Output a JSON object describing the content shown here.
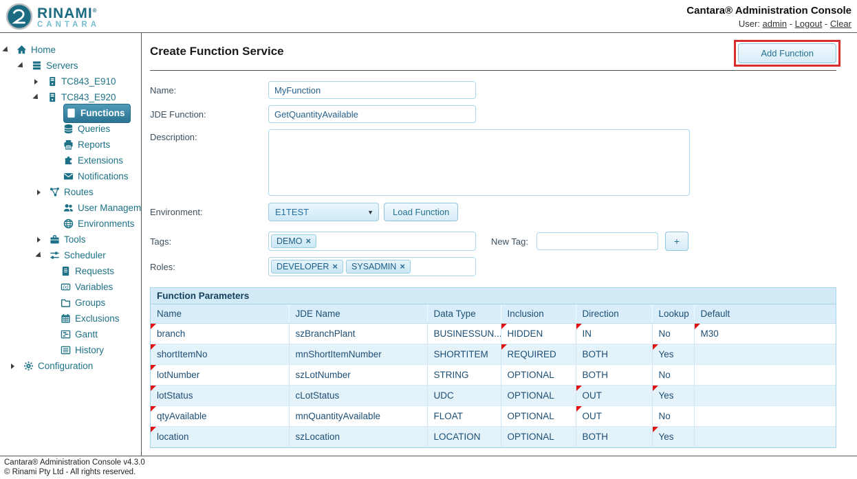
{
  "header": {
    "logo_line1": "RINAMI",
    "logo_reg": "®",
    "logo_line2": "CANTARA",
    "title": "Cantara® Administration Console",
    "user_label": "User:",
    "user_name": "admin",
    "separator": "-",
    "logout_label": "Logout",
    "clear_label": "Clear"
  },
  "sidebar": {
    "items": [
      {
        "label": "Home",
        "icon": "home-icon",
        "expander": "open",
        "indent": 6,
        "selected": false
      },
      {
        "label": "Servers",
        "icon": "servers-icon",
        "expander": "open",
        "indent": 28,
        "selected": false
      },
      {
        "label": "TC843_E910",
        "icon": "server-icon",
        "expander": "closed",
        "indent": 50,
        "selected": false
      },
      {
        "label": "TC843_E920",
        "icon": "server-icon",
        "expander": "open",
        "indent": 50,
        "selected": false
      },
      {
        "label": "Functions",
        "icon": "functions-icon",
        "expander": "none",
        "indent": 74,
        "selected": true
      },
      {
        "label": "Queries",
        "icon": "queries-icon",
        "expander": "none",
        "indent": 74,
        "selected": false
      },
      {
        "label": "Reports",
        "icon": "reports-icon",
        "expander": "none",
        "indent": 74,
        "selected": false
      },
      {
        "label": "Extensions",
        "icon": "extensions-icon",
        "expander": "none",
        "indent": 74,
        "selected": false
      },
      {
        "label": "Notifications",
        "icon": "notifications-icon",
        "expander": "none",
        "indent": 74,
        "selected": false
      },
      {
        "label": "Routes",
        "icon": "routes-icon",
        "expander": "closed",
        "indent": 54,
        "selected": false
      },
      {
        "label": "User Management",
        "icon": "user-management-icon",
        "expander": "none",
        "indent": 74,
        "selected": false
      },
      {
        "label": "Environments",
        "icon": "environments-icon",
        "expander": "none",
        "indent": 74,
        "selected": false
      },
      {
        "label": "Tools",
        "icon": "tools-icon",
        "expander": "closed",
        "indent": 54,
        "selected": false
      },
      {
        "label": "Scheduler",
        "icon": "scheduler-icon",
        "expander": "open",
        "indent": 54,
        "selected": false
      },
      {
        "label": "Requests",
        "icon": "requests-icon",
        "expander": "none",
        "indent": 70,
        "selected": false
      },
      {
        "label": "Variables",
        "icon": "variables-icon",
        "expander": "none",
        "indent": 70,
        "selected": false
      },
      {
        "label": "Groups",
        "icon": "groups-icon",
        "expander": "none",
        "indent": 70,
        "selected": false
      },
      {
        "label": "Exclusions",
        "icon": "exclusions-icon",
        "expander": "none",
        "indent": 70,
        "selected": false
      },
      {
        "label": "Gantt",
        "icon": "gantt-icon",
        "expander": "none",
        "indent": 70,
        "selected": false
      },
      {
        "label": "History",
        "icon": "history-icon",
        "expander": "none",
        "indent": 70,
        "selected": false
      },
      {
        "label": "Configuration",
        "icon": "configuration-icon",
        "expander": "closed",
        "indent": 16,
        "selected": false
      }
    ]
  },
  "main": {
    "page_title": "Create Function Service",
    "add_function_label": "Add Function",
    "name_label": "Name:",
    "name_value": "MyFunction",
    "jde_function_label": "JDE Function:",
    "jde_function_value": "GetQuantityAvailable",
    "description_label": "Description:",
    "description_value": "",
    "environment_label": "Environment:",
    "environment_value": "E1TEST",
    "load_function_label": "Load Function",
    "tags_label": "Tags:",
    "tags_chips": [
      "DEMO"
    ],
    "new_tag_label": "New Tag:",
    "new_tag_value": "",
    "add_tag_label": "+",
    "roles_label": "Roles:",
    "roles_chips": [
      "DEVELOPER",
      "SYSADMIN"
    ],
    "chip_close_glyph": "×"
  },
  "table": {
    "title": "Function Parameters",
    "columns": [
      "Name",
      "JDE Name",
      "Data Type",
      "Inclusion",
      "Direction",
      "Lookup",
      "Default"
    ],
    "rows": [
      {
        "cells": [
          "branch",
          "szBranchPlant",
          "BUSINESSUN...",
          "HIDDEN",
          "IN",
          "No",
          "M30"
        ],
        "flagged_cells": [
          0,
          3,
          4,
          6
        ]
      },
      {
        "cells": [
          "shortItemNo",
          "mnShortItemNumber",
          "SHORTITEM",
          "REQUIRED",
          "BOTH",
          "Yes",
          ""
        ],
        "flagged_cells": [
          0,
          3,
          5
        ]
      },
      {
        "cells": [
          "lotNumber",
          "szLotNumber",
          "STRING",
          "OPTIONAL",
          "BOTH",
          "No",
          ""
        ],
        "flagged_cells": [
          0
        ]
      },
      {
        "cells": [
          "lotStatus",
          "cLotStatus",
          "UDC",
          "OPTIONAL",
          "OUT",
          "Yes",
          ""
        ],
        "flagged_cells": [
          0,
          4,
          5
        ]
      },
      {
        "cells": [
          "qtyAvailable",
          "mnQuantityAvailable",
          "FLOAT",
          "OPTIONAL",
          "OUT",
          "No",
          ""
        ],
        "flagged_cells": [
          0,
          4
        ]
      },
      {
        "cells": [
          "location",
          "szLocation",
          "LOCATION",
          "OPTIONAL",
          "BOTH",
          "Yes",
          ""
        ],
        "flagged_cells": [
          0,
          5
        ]
      }
    ]
  },
  "footer": {
    "line1": "Cantara® Administration Console v4.3.0",
    "line2": "© Rinami Pty Ltd - All rights reserved."
  },
  "colors": {
    "accent_teal": "#1d7186",
    "selected_item_bg": "#2a7392",
    "highlight_red": "#d62c2c",
    "flag_red": "#e11212",
    "panel_blue": "#d9eefa",
    "border_blue": "#a8d8ef"
  }
}
